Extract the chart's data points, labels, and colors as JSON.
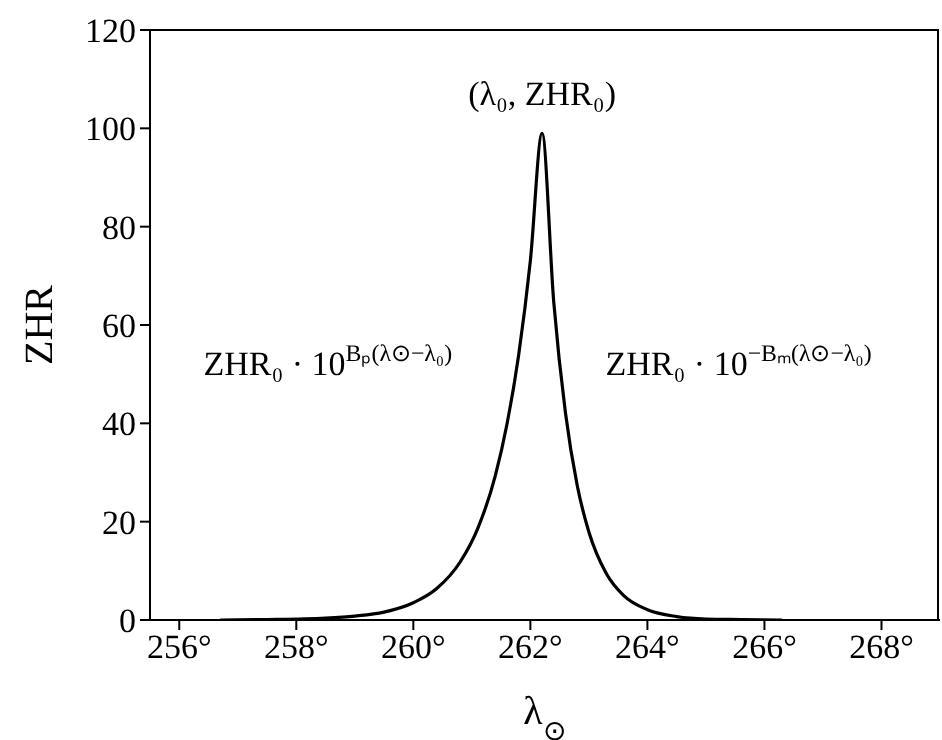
{
  "chart_data": {
    "type": "line",
    "xlabel": "λ$_{⊙}$",
    "ylabel": "ZHR",
    "xlim": [
      255.5,
      269
    ],
    "ylim": [
      0,
      120
    ],
    "xticks": [
      {
        "value": 256,
        "label": "256°"
      },
      {
        "value": 258,
        "label": "258°"
      },
      {
        "value": 260,
        "label": "260°"
      },
      {
        "value": 262,
        "label": "262°"
      },
      {
        "value": 264,
        "label": "264°"
      },
      {
        "value": 266,
        "label": "266°"
      },
      {
        "value": 268,
        "label": "268°"
      }
    ],
    "yticks": [
      0,
      20,
      40,
      60,
      80,
      100,
      120
    ],
    "grid": false,
    "marker": "none",
    "line_style": "solid",
    "annotations": [
      {
        "text": "(λ₀, ZHR₀)",
        "x": 262.2,
        "y": 99
      },
      "ZHR₀ · 10$^{Bₚ(λ⊙−λ₀)}$",
      "ZHR₀ · 10$^{−Bₘ(λ⊙−λ₀)}$"
    ],
    "series": [
      {
        "color": "#000000",
        "x": [
          256.7,
          257.5,
          258.5,
          259.0,
          259.5,
          260.0,
          260.4,
          260.8,
          261.1,
          261.4,
          261.6,
          261.8,
          262.0,
          262.2,
          262.4,
          262.6,
          262.8,
          263.0,
          263.3,
          263.6,
          264.0,
          264.5,
          265.0,
          265.6,
          266.3
        ],
        "values": [
          0,
          0.1,
          0.4,
          0.8,
          1.6,
          3.5,
          6.4,
          11.8,
          18.6,
          29.3,
          39.8,
          53.9,
          73.1,
          99,
          64.6,
          42.1,
          27.4,
          17.9,
          9.4,
          4.9,
          2.1,
          0.7,
          0.2,
          0.1,
          0
        ]
      }
    ]
  }
}
